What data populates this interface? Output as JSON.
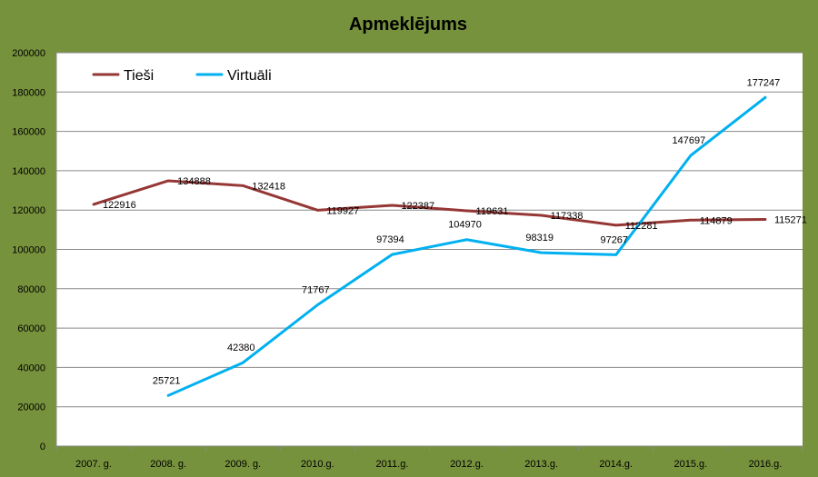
{
  "chart_data": {
    "type": "line",
    "title": "Apmeklējums",
    "categories": [
      "2007. g.",
      "2008. g.",
      "2009. g.",
      "2010.g.",
      "2011.g.",
      "2012.g.",
      "2013.g.",
      "2014.g.",
      "2015.g.",
      "2016.g."
    ],
    "ylim": [
      0,
      200000
    ],
    "yticks": [
      "0",
      "20000",
      "40000",
      "60000",
      "80000",
      "100000",
      "120000",
      "140000",
      "160000",
      "180000",
      "200000"
    ],
    "grid": true,
    "legend_position": "top-left",
    "series": [
      {
        "name": "Tieši",
        "color": "#953735",
        "values": [
          122916,
          134888,
          132418,
          119927,
          122387,
          119631,
          117338,
          112281,
          114879,
          115271
        ]
      },
      {
        "name": "Virtuāli",
        "color": "#00b0f0",
        "values": [
          null,
          25721,
          42380,
          71767,
          97394,
          104970,
          98319,
          97267,
          147697,
          177247
        ]
      }
    ],
    "plot_background": "#ffffff",
    "page_background": "#77923c",
    "gridline_color": "#898989"
  }
}
